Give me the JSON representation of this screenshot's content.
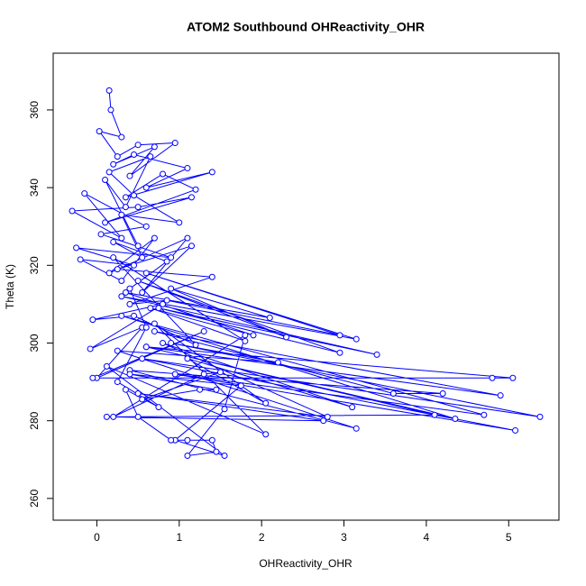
{
  "chart_data": {
    "type": "line",
    "marker": "circle",
    "title": "ATOM2 Southbound OHReactivity_OHR",
    "x_label": "OHReactivity_OHR",
    "y_label": "Theta (K)",
    "color": "#0000ff",
    "xlim": [
      -0.53,
      5.61
    ],
    "ylim": [
      254.4,
      374.6
    ],
    "xticks": [
      0,
      1,
      2,
      3,
      4,
      5
    ],
    "yticks": [
      260,
      280,
      300,
      320,
      340,
      360
    ],
    "x": [
      0.15,
      0.17,
      0.3,
      0.03,
      0.25,
      0.5,
      0.95,
      0.4,
      0.7,
      0.2,
      0.45,
      1.1,
      0.6,
      1.4,
      0.35,
      0.8,
      1.2,
      0.1,
      1.15,
      0.5,
      -0.3,
      0.3,
      -0.15,
      0.6,
      0.05,
      0.9,
      -0.25,
      0.45,
      -0.2,
      0.3,
      0.7,
      0.15,
      1.1,
      0.55,
      1.15,
      0.25,
      1.4,
      0.4,
      0.85,
      2.95,
      0.6,
      3.15,
      0.3,
      3.4,
      0.75,
      2.95,
      0.5,
      2.3,
      0.9,
      2.1,
      0.35,
      1.9,
      0.65,
      1.8,
      0.2,
      1.2,
      0.45,
      -0.05,
      0.8,
      -0.08,
      0.55,
      0.0,
      1.3,
      -0.05,
      4.8,
      5.05,
      0.6,
      4.9,
      0.7,
      3.6,
      4.2,
      0.4,
      3.15,
      0.25,
      2.2,
      0.9,
      5.38,
      0.55,
      5.08,
      0.95,
      4.7,
      0.3,
      4.35,
      0.6,
      4.1,
      0.12,
      2.75,
      0.5,
      2.8,
      0.8,
      3.1,
      1.1,
      2.05,
      0.7,
      2.05,
      0.12,
      1.55,
      0.95,
      1.75,
      0.4,
      1.45,
      1.25,
      0.55,
      1.5,
      1.3,
      0.2,
      1.8,
      1.55,
      1.1,
      1.45,
      1.4,
      1.1,
      0.9,
      0.5,
      0.35,
      0.75,
      0.25,
      0.6,
      0.4,
      0.85,
      0.2,
      0.55,
      0.3,
      1.0,
      0.45,
      0.15,
      0.65,
      0.35,
      0.1,
      0.5
    ],
    "values": [
      365,
      360,
      353,
      354.5,
      348,
      351,
      351.5,
      343,
      350.5,
      346,
      348.5,
      345,
      340,
      344,
      337.5,
      343.5,
      339.5,
      331,
      337.5,
      335,
      334,
      327,
      338.5,
      330,
      328,
      322,
      324.5,
      320,
      321.5,
      316,
      327,
      318,
      327,
      313,
      325,
      319,
      317,
      310,
      311,
      302,
      318,
      301,
      312,
      297,
      309,
      297.5,
      316,
      301.5,
      314,
      306.5,
      313,
      302,
      309,
      300.5,
      322,
      299.5,
      307,
      306,
      310,
      298.5,
      304,
      291,
      303,
      291,
      291,
      291,
      299,
      286.5,
      303,
      287,
      287,
      293,
      278,
      298,
      295,
      300,
      281,
      296,
      277.5,
      292,
      281.5,
      307,
      280.5,
      299,
      281.5,
      281,
      280,
      287,
      281,
      300,
      283.5,
      296,
      284.5,
      305,
      276.5,
      294,
      271,
      275,
      289,
      292,
      288,
      288,
      285.5,
      292.5,
      292,
      281,
      302,
      283,
      271,
      272,
      275,
      275,
      275,
      281,
      288,
      283.5,
      290,
      304,
      314,
      321,
      326,
      322,
      333,
      331,
      338,
      344,
      348,
      335,
      342,
      325
    ]
  }
}
